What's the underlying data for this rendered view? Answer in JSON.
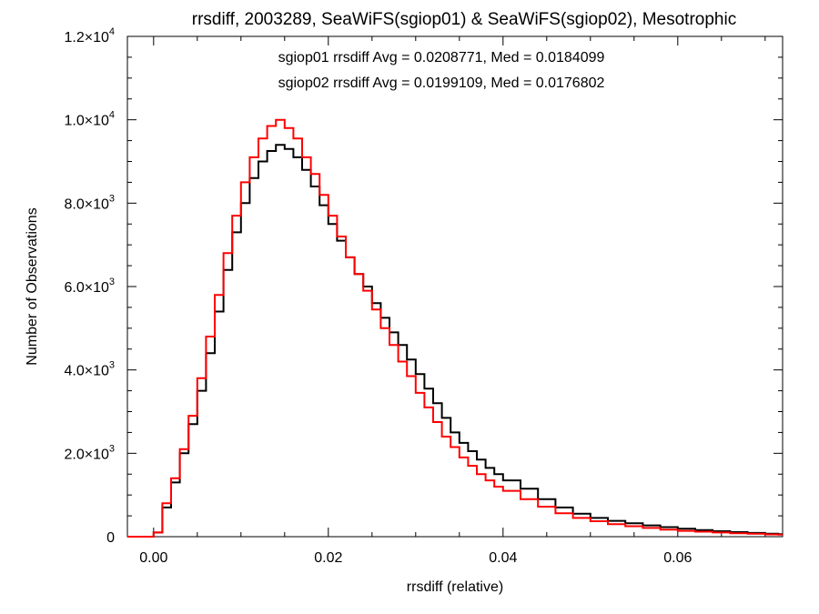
{
  "chart_data": {
    "type": "line",
    "title": "rrsdiff, 2003289, SeaWiFS(sgiop01) & SeaWiFS(sgiop02), Mesotrophic",
    "xlabel": "rrsdiff (relative)",
    "ylabel": "Number of Observations",
    "xlim": [
      -0.003,
      0.072
    ],
    "ylim": [
      0,
      12000
    ],
    "x_ticks": [
      {
        "value": 0.0,
        "label": "0.00"
      },
      {
        "value": 0.02,
        "label": "0.02"
      },
      {
        "value": 0.04,
        "label": "0.04"
      },
      {
        "value": 0.06,
        "label": "0.06"
      }
    ],
    "y_ticks": [
      {
        "value": 0,
        "mantissa": "0",
        "exp": ""
      },
      {
        "value": 2000,
        "mantissa": "2.0×10",
        "exp": "3"
      },
      {
        "value": 4000,
        "mantissa": "4.0×10",
        "exp": "3"
      },
      {
        "value": 6000,
        "mantissa": "6.0×10",
        "exp": "3"
      },
      {
        "value": 8000,
        "mantissa": "8.0×10",
        "exp": "3"
      },
      {
        "value": 10000,
        "mantissa": "1.0×10",
        "exp": "4"
      },
      {
        "value": 12000,
        "mantissa": "1.2×10",
        "exp": "4"
      }
    ],
    "grid": false,
    "legend_placement": "top-center",
    "series": [
      {
        "name": "sgiop01",
        "legend_text": "sgiop01 rrsdiff Avg = 0.0208771, Med = 0.0184099",
        "color": "#000000",
        "x": [
          -0.0015,
          0.0,
          0.001,
          0.002,
          0.003,
          0.004,
          0.005,
          0.006,
          0.007,
          0.008,
          0.009,
          0.01,
          0.011,
          0.012,
          0.013,
          0.014,
          0.015,
          0.016,
          0.017,
          0.018,
          0.019,
          0.02,
          0.021,
          0.022,
          0.023,
          0.024,
          0.025,
          0.026,
          0.027,
          0.028,
          0.029,
          0.03,
          0.031,
          0.032,
          0.033,
          0.034,
          0.035,
          0.036,
          0.037,
          0.038,
          0.039,
          0.04,
          0.042,
          0.044,
          0.046,
          0.048,
          0.05,
          0.052,
          0.054,
          0.056,
          0.058,
          0.06,
          0.062,
          0.064,
          0.066,
          0.068,
          0.07,
          0.0715
        ],
        "y": [
          0,
          100,
          700,
          1300,
          2000,
          2700,
          3500,
          4400,
          5400,
          6400,
          7300,
          8000,
          8600,
          9000,
          9250,
          9400,
          9300,
          9100,
          8800,
          8400,
          7950,
          7500,
          7100,
          6700,
          6300,
          6000,
          5600,
          5250,
          4900,
          4600,
          4250,
          3900,
          3550,
          3200,
          2850,
          2500,
          2250,
          2050,
          1850,
          1650,
          1500,
          1350,
          1150,
          900,
          700,
          550,
          450,
          380,
          320,
          270,
          230,
          190,
          160,
          130,
          110,
          90,
          70,
          60
        ]
      },
      {
        "name": "sgiop02",
        "legend_text": "sgiop02 rrsdiff Avg = 0.0199109, Med = 0.0176802",
        "color": "#ff0000",
        "x": [
          -0.0015,
          0.0,
          0.001,
          0.002,
          0.003,
          0.004,
          0.005,
          0.006,
          0.007,
          0.008,
          0.009,
          0.01,
          0.011,
          0.012,
          0.013,
          0.014,
          0.015,
          0.016,
          0.017,
          0.018,
          0.019,
          0.02,
          0.021,
          0.022,
          0.023,
          0.024,
          0.025,
          0.026,
          0.027,
          0.028,
          0.029,
          0.03,
          0.031,
          0.032,
          0.033,
          0.034,
          0.035,
          0.036,
          0.037,
          0.038,
          0.039,
          0.04,
          0.042,
          0.044,
          0.046,
          0.048,
          0.05,
          0.052,
          0.054,
          0.056,
          0.058,
          0.06,
          0.062,
          0.064,
          0.066,
          0.068,
          0.07,
          0.0715
        ],
        "y": [
          0,
          100,
          800,
          1400,
          2100,
          2900,
          3800,
          4800,
          5800,
          6800,
          7700,
          8500,
          9100,
          9550,
          9850,
          10000,
          9800,
          9550,
          9100,
          8700,
          8200,
          7700,
          7200,
          6700,
          6300,
          5900,
          5450,
          5000,
          4600,
          4200,
          3850,
          3450,
          3100,
          2750,
          2400,
          2150,
          1900,
          1700,
          1500,
          1350,
          1200,
          1100,
          900,
          720,
          560,
          450,
          370,
          300,
          250,
          210,
          170,
          140,
          120,
          100,
          80,
          70,
          55,
          50
        ]
      }
    ]
  }
}
